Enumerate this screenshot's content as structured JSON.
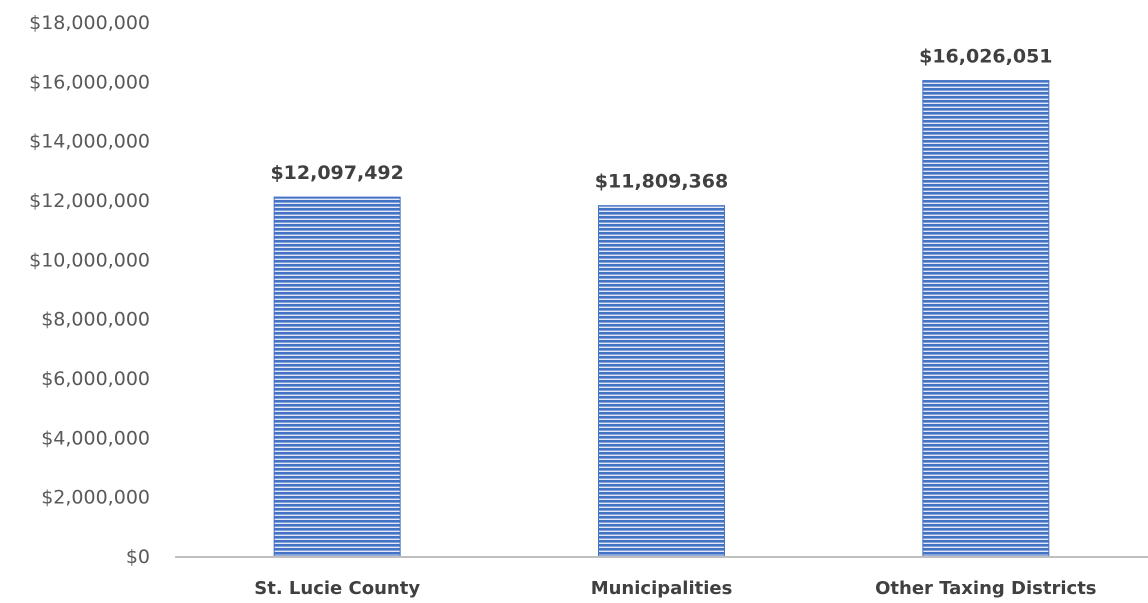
{
  "chart_data": {
    "type": "bar",
    "title": "",
    "xlabel": "",
    "ylabel": "",
    "categories": [
      "St. Lucie County",
      "Municipalities",
      "Other Taxing Districts"
    ],
    "values": [
      12097492,
      11809368,
      16026051
    ],
    "data_labels": [
      "$12,097,492",
      "$11,809,368",
      "$16,026,051"
    ],
    "ylim": [
      0,
      18000000
    ],
    "y_ticks": [
      0,
      2000000,
      4000000,
      6000000,
      8000000,
      10000000,
      12000000,
      14000000,
      16000000,
      18000000
    ],
    "y_tick_labels": [
      "$0",
      "$2,000,000",
      "$4,000,000",
      "$6,000,000",
      "$8,000,000",
      "$10,000,000",
      "$12,000,000",
      "$14,000,000",
      "$16,000,000",
      "$18,000,000"
    ],
    "grid": false,
    "legend": "none",
    "colors": {
      "bar": "#4472c4",
      "bar_stripe": "#ffffff",
      "axis": "#bfbfbf"
    }
  }
}
